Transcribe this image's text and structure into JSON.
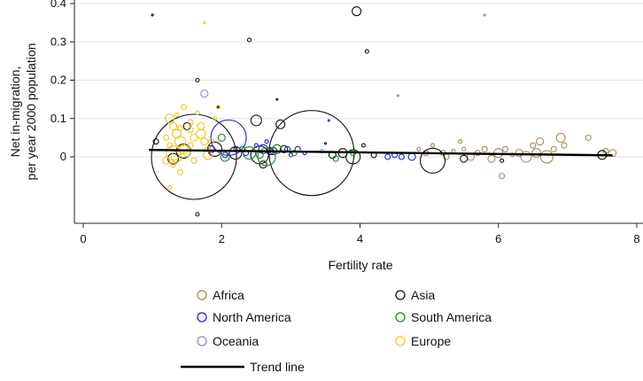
{
  "chart_data": {
    "type": "scatter",
    "xlabel": "Fertility rate",
    "ylabel_lines": [
      "Net in-migration,",
      "per year 2000 population"
    ],
    "xlim": [
      0,
      8
    ],
    "ylim": [
      -0.15,
      0.4
    ],
    "xticks": [
      0,
      2,
      4,
      6,
      8
    ],
    "yticks": [
      0,
      0.1,
      0.2,
      0.3,
      0.4
    ],
    "ytick_labels": [
      "0",
      "0.1",
      "0.2",
      "0.3",
      "0.4"
    ],
    "grid": "horizontal",
    "legend_position": "bottom",
    "legend": [
      {
        "key": "africa",
        "label": "Africa",
        "color": "#a08c5a"
      },
      {
        "key": "asia",
        "label": "Asia",
        "color": "#111111"
      },
      {
        "key": "north_america",
        "label": "North America",
        "color": "#1f1fd0"
      },
      {
        "key": "south_america",
        "label": "South America",
        "color": "#1a8a1a"
      },
      {
        "key": "oceania",
        "label": "Oceania",
        "color": "#8c8cd9"
      },
      {
        "key": "europe",
        "label": "Europe",
        "color": "#f0c81e"
      }
    ],
    "trend_label": "Trend line",
    "trend": {
      "x": [
        0.95,
        7.65
      ],
      "y": [
        0.018,
        0.004
      ]
    },
    "series": [
      {
        "key": "africa",
        "points": [
          [
            4.55,
            0.16,
            1
          ],
          [
            5.8,
            0.37,
            1
          ],
          [
            4.85,
            0.02,
            2
          ],
          [
            5.2,
            0.01,
            3
          ],
          [
            5.35,
            0.015,
            2
          ],
          [
            5.5,
            0.02,
            2
          ],
          [
            5.6,
            0.0,
            4
          ],
          [
            5.7,
            0.01,
            3
          ],
          [
            5.8,
            0.02,
            3
          ],
          [
            5.9,
            -0.005,
            4
          ],
          [
            6.0,
            0.01,
            5
          ],
          [
            6.05,
            -0.05,
            3
          ],
          [
            6.1,
            0.02,
            3
          ],
          [
            6.2,
            0.005,
            2
          ],
          [
            6.3,
            0.01,
            4
          ],
          [
            6.4,
            0.0,
            6
          ],
          [
            6.5,
            0.03,
            3
          ],
          [
            6.55,
            0.01,
            5
          ],
          [
            6.6,
            0.04,
            4
          ],
          [
            6.7,
            0.0,
            7
          ],
          [
            6.8,
            0.02,
            3
          ],
          [
            6.9,
            0.05,
            5
          ],
          [
            6.95,
            0.03,
            3
          ],
          [
            7.3,
            0.05,
            3
          ],
          [
            7.55,
            0.015,
            3
          ],
          [
            7.65,
            0.01,
            4
          ],
          [
            5.45,
            0.04,
            2
          ],
          [
            5.25,
            0.0,
            3
          ],
          [
            5.05,
            0.03,
            2
          ],
          [
            4.95,
            0.01,
            3
          ]
        ]
      },
      {
        "key": "asia",
        "points": [
          [
            1.0,
            0.37,
            1
          ],
          [
            2.4,
            0.305,
            2
          ],
          [
            3.95,
            0.38,
            5
          ],
          [
            4.1,
            0.275,
            2
          ],
          [
            4.05,
            0.03,
            2
          ],
          [
            1.65,
            0.2,
            2
          ],
          [
            1.65,
            -0.15,
            2
          ],
          [
            2.8,
            0.15,
            1
          ],
          [
            1.95,
            0.13,
            1
          ],
          [
            2.5,
            0.095,
            6
          ],
          [
            2.85,
            0.085,
            5
          ],
          [
            1.05,
            0.04,
            3
          ],
          [
            1.6,
            0.0,
            48
          ],
          [
            3.3,
            0.01,
            48
          ],
          [
            2.55,
            0.005,
            10
          ],
          [
            2.2,
            0.01,
            7
          ],
          [
            2.6,
            -0.02,
            4
          ],
          [
            2.9,
            0.02,
            4
          ],
          [
            3.6,
            0.005,
            4
          ],
          [
            3.75,
            0.01,
            5
          ],
          [
            3.9,
            0.0,
            8
          ],
          [
            4.2,
            0.005,
            3
          ],
          [
            5.05,
            -0.01,
            14
          ],
          [
            5.5,
            -0.005,
            4
          ],
          [
            6.05,
            -0.01,
            2
          ],
          [
            7.5,
            0.005,
            5
          ],
          [
            1.5,
            0.08,
            4
          ],
          [
            1.45,
            0.015,
            8
          ],
          [
            1.3,
            -0.005,
            6
          ],
          [
            3.5,
            0.035,
            1
          ],
          [
            2.3,
            0.02,
            3
          ],
          [
            1.9,
            0.02,
            8
          ],
          [
            2.7,
            0.015,
            4
          ]
        ]
      },
      {
        "key": "north_america",
        "points": [
          [
            2.1,
            0.05,
            20
          ],
          [
            1.85,
            0.02,
            4
          ],
          [
            2.6,
            0.02,
            5
          ],
          [
            2.75,
            0.015,
            4
          ],
          [
            2.95,
            0.02,
            3
          ],
          [
            3.1,
            0.02,
            3
          ],
          [
            3.2,
            0.01,
            2
          ],
          [
            3.55,
            0.095,
            1
          ],
          [
            4.4,
            0.0,
            3
          ],
          [
            4.5,
            0.005,
            3
          ],
          [
            4.6,
            0.0,
            3
          ],
          [
            4.75,
            0.0,
            4
          ],
          [
            2.05,
            0.005,
            3
          ],
          [
            2.35,
            0.01,
            3
          ],
          [
            2.2,
            0.02,
            2
          ],
          [
            2.5,
            0.03,
            2
          ],
          [
            2.65,
            0.04,
            2
          ],
          [
            3.0,
            0.005,
            2
          ]
        ]
      },
      {
        "key": "south_america",
        "points": [
          [
            2.0,
            0.05,
            4
          ],
          [
            2.05,
            0.0,
            5
          ],
          [
            2.4,
            0.01,
            7
          ],
          [
            2.65,
            0.0,
            10
          ],
          [
            2.8,
            0.02,
            5
          ],
          [
            3.05,
            0.01,
            3
          ],
          [
            3.65,
            -0.005,
            3
          ],
          [
            3.9,
            0.01,
            3
          ],
          [
            2.3,
            0.02,
            3
          ],
          [
            2.55,
            0.005,
            4
          ]
        ]
      },
      {
        "key": "oceania",
        "points": [
          [
            1.75,
            0.165,
            4
          ],
          [
            1.85,
            0.02,
            3
          ],
          [
            2.0,
            0.01,
            2
          ],
          [
            3.45,
            0.015,
            2
          ]
        ]
      },
      {
        "key": "europe",
        "points": [
          [
            1.75,
            0.35,
            1
          ],
          [
            1.25,
            0.1,
            5
          ],
          [
            1.3,
            0.08,
            4
          ],
          [
            1.35,
            0.06,
            5
          ],
          [
            1.4,
            0.04,
            6
          ],
          [
            1.45,
            0.02,
            5
          ],
          [
            1.3,
            0.01,
            8
          ],
          [
            1.35,
            0.0,
            6
          ],
          [
            1.5,
            0.01,
            4
          ],
          [
            1.55,
            0.03,
            3
          ],
          [
            1.6,
            0.05,
            4
          ],
          [
            1.7,
            0.06,
            5
          ],
          [
            1.75,
            0.04,
            4
          ],
          [
            1.8,
            0.02,
            3
          ],
          [
            1.85,
            0.04,
            3
          ],
          [
            1.9,
            0.1,
            2
          ],
          [
            1.95,
            0.13,
            2
          ],
          [
            1.3,
            -0.02,
            3
          ],
          [
            1.4,
            -0.04,
            3
          ],
          [
            1.2,
            -0.01,
            4
          ],
          [
            1.25,
            0.03,
            3
          ],
          [
            1.6,
            -0.01,
            3
          ],
          [
            1.7,
            0.08,
            4
          ],
          [
            1.55,
            0.09,
            3
          ],
          [
            1.65,
            0.115,
            2
          ],
          [
            1.45,
            0.13,
            3
          ],
          [
            1.35,
            0.11,
            2
          ],
          [
            1.2,
            0.05,
            3
          ],
          [
            1.55,
            0.07,
            3
          ],
          [
            1.8,
            0.005,
            5
          ],
          [
            1.25,
            -0.08,
            2
          ],
          [
            1.4,
            0.075,
            3
          ]
        ]
      }
    ]
  }
}
